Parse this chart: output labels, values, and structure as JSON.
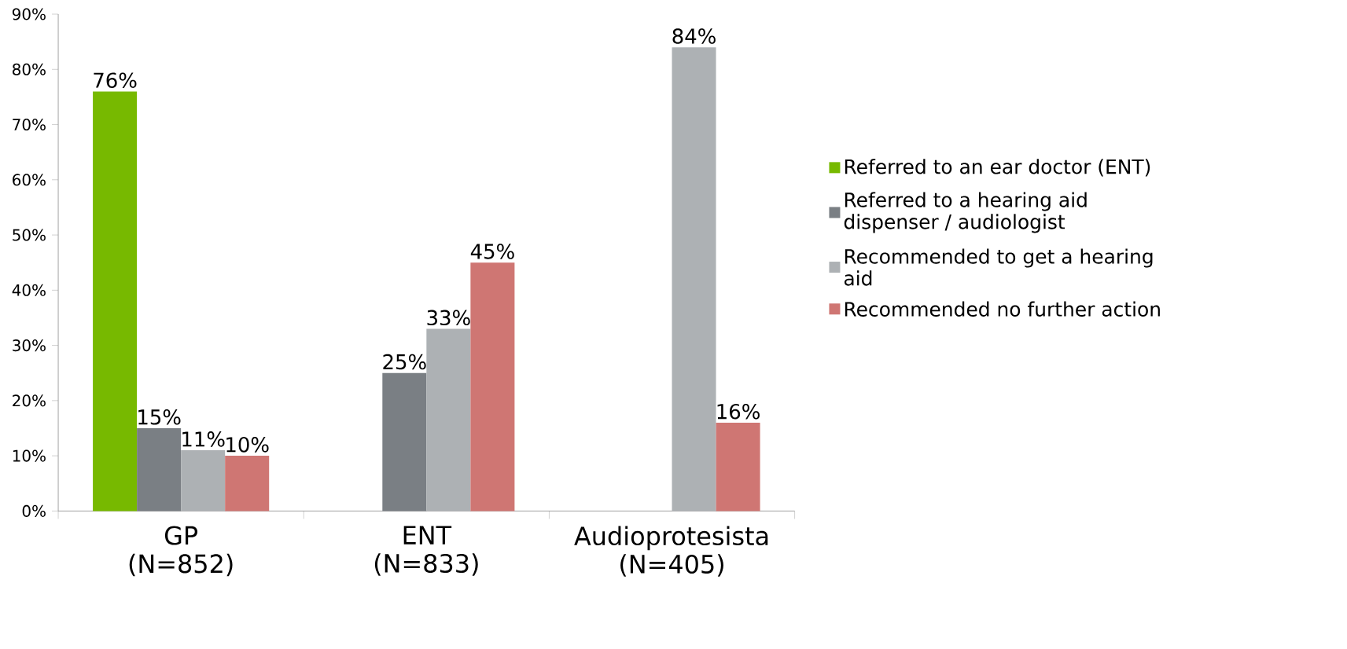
{
  "chart_data": {
    "type": "bar",
    "categories": [
      "GP (N=852)",
      "ENT (N=833)",
      "Audioprotesista (N=405)"
    ],
    "series": [
      {
        "name": "Referred to an ear doctor (ENT)",
        "color": "#77b900",
        "values": [
          76,
          null,
          null
        ],
        "value_labels": [
          "76%",
          null,
          null
        ]
      },
      {
        "name": "Referred to a hearing aid dispenser / audiologist",
        "color": "#7a7f84",
        "values": [
          15,
          25,
          null
        ],
        "value_labels": [
          "15%",
          "25%",
          null
        ]
      },
      {
        "name": "Recommended to get a hearing aid",
        "color": "#adb1b4",
        "values": [
          11,
          33,
          84
        ],
        "value_labels": [
          "11%",
          "33%",
          "84%"
        ]
      },
      {
        "name": "Recommended no further action",
        "color": "#cf7673",
        "values": [
          10,
          45,
          16
        ],
        "value_labels": [
          "10%",
          "45%",
          "16%"
        ]
      }
    ],
    "ylim": [
      0,
      90
    ],
    "yticks": [
      {
        "value": 0,
        "label": "0%"
      },
      {
        "value": 10,
        "label": "10%"
      },
      {
        "value": 20,
        "label": "20%"
      },
      {
        "value": 30,
        "label": "30%"
      },
      {
        "value": 40,
        "label": "40%"
      },
      {
        "value": 50,
        "label": "50%"
      },
      {
        "value": 60,
        "label": "60%"
      },
      {
        "value": 70,
        "label": "70%"
      },
      {
        "value": 80,
        "label": "80%"
      },
      {
        "value": 90,
        "label": "90%"
      }
    ],
    "legend": "right"
  }
}
